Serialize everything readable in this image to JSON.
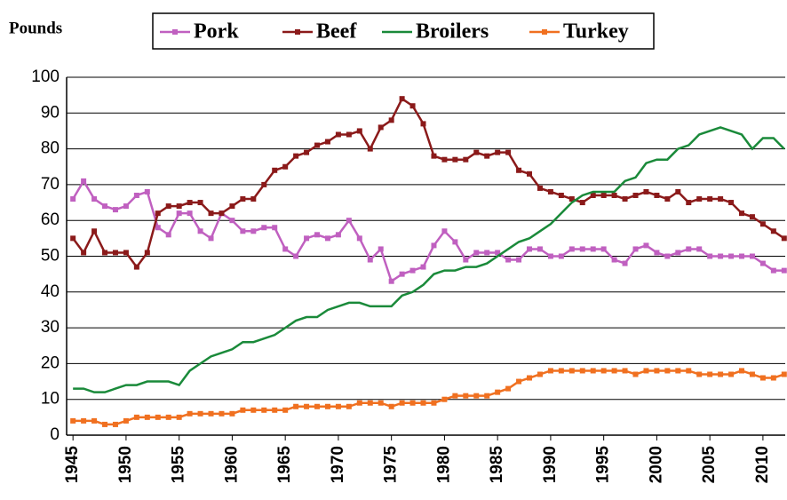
{
  "chart_data": {
    "type": "line",
    "y_label": "Pounds",
    "x": [
      1945,
      1946,
      1947,
      1948,
      1949,
      1950,
      1951,
      1952,
      1953,
      1954,
      1955,
      1956,
      1957,
      1958,
      1959,
      1960,
      1961,
      1962,
      1963,
      1964,
      1965,
      1966,
      1967,
      1968,
      1969,
      1970,
      1971,
      1972,
      1973,
      1974,
      1975,
      1976,
      1977,
      1978,
      1979,
      1980,
      1981,
      1982,
      1983,
      1984,
      1985,
      1986,
      1987,
      1988,
      1989,
      1990,
      1991,
      1992,
      1993,
      1994,
      1995,
      1996,
      1997,
      1998,
      1999,
      2000,
      2001,
      2002,
      2003,
      2004,
      2005,
      2006,
      2007,
      2008,
      2009,
      2010,
      2011,
      2012
    ],
    "series": [
      {
        "name": "Pork",
        "color": "#c060c0",
        "marker": true,
        "values": [
          66,
          71,
          66,
          64,
          63,
          64,
          67,
          68,
          58,
          56,
          62,
          62,
          57,
          55,
          62,
          60,
          57,
          57,
          58,
          58,
          52,
          50,
          55,
          56,
          55,
          56,
          60,
          55,
          49,
          52,
          43,
          45,
          46,
          47,
          53,
          57,
          54,
          49,
          51,
          51,
          51,
          49,
          49,
          52,
          52,
          50,
          50,
          52,
          52,
          52,
          52,
          49,
          48,
          52,
          53,
          51,
          50,
          51,
          52,
          52,
          50,
          50,
          50,
          50,
          50,
          48,
          46,
          46
        ]
      },
      {
        "name": "Beef",
        "color": "#8b1a1a",
        "marker": true,
        "values": [
          55,
          51,
          57,
          51,
          51,
          51,
          47,
          51,
          62,
          64,
          64,
          65,
          65,
          62,
          62,
          64,
          66,
          66,
          70,
          74,
          75,
          78,
          79,
          81,
          82,
          84,
          84,
          85,
          80,
          86,
          88,
          94,
          92,
          87,
          78,
          77,
          77,
          77,
          79,
          78,
          79,
          79,
          74,
          73,
          69,
          68,
          67,
          66,
          65,
          67,
          67,
          67,
          66,
          67,
          68,
          67,
          66,
          68,
          65,
          66,
          66,
          66,
          65,
          62,
          61,
          59,
          57,
          55
        ]
      },
      {
        "name": "Broilers",
        "color": "#1a8a3a",
        "marker": false,
        "values": [
          13,
          13,
          12,
          12,
          13,
          14,
          14,
          15,
          15,
          15,
          14,
          18,
          20,
          22,
          23,
          24,
          26,
          26,
          27,
          28,
          30,
          32,
          33,
          33,
          35,
          36,
          37,
          37,
          36,
          36,
          36,
          39,
          40,
          42,
          45,
          46,
          46,
          47,
          47,
          48,
          50,
          52,
          54,
          55,
          57,
          59,
          62,
          65,
          67,
          68,
          68,
          68,
          71,
          72,
          76,
          77,
          77,
          80,
          81,
          84,
          85,
          86,
          85,
          84,
          80,
          83,
          83,
          80
        ]
      },
      {
        "name": "Turkey",
        "color": "#f07020",
        "marker": true,
        "values": [
          4,
          4,
          4,
          3,
          3,
          4,
          5,
          5,
          5,
          5,
          5,
          6,
          6,
          6,
          6,
          6,
          7,
          7,
          7,
          7,
          7,
          8,
          8,
          8,
          8,
          8,
          8,
          9,
          9,
          9,
          8,
          9,
          9,
          9,
          9,
          10,
          11,
          11,
          11,
          11,
          12,
          13,
          15,
          16,
          17,
          18,
          18,
          18,
          18,
          18,
          18,
          18,
          18,
          17,
          18,
          18,
          18,
          18,
          18,
          17,
          17,
          17,
          17,
          18,
          17,
          16,
          16,
          17
        ]
      }
    ],
    "xlim": [
      1944.4,
      2012.1
    ],
    "ylim": [
      0,
      100
    ],
    "xticks": [
      1945,
      1950,
      1955,
      1960,
      1965,
      1970,
      1975,
      1980,
      1985,
      1990,
      1995,
      2000,
      2005,
      2010
    ],
    "yticks": [
      0,
      10,
      20,
      30,
      40,
      50,
      60,
      70,
      80,
      90,
      100
    ],
    "grid": true
  }
}
